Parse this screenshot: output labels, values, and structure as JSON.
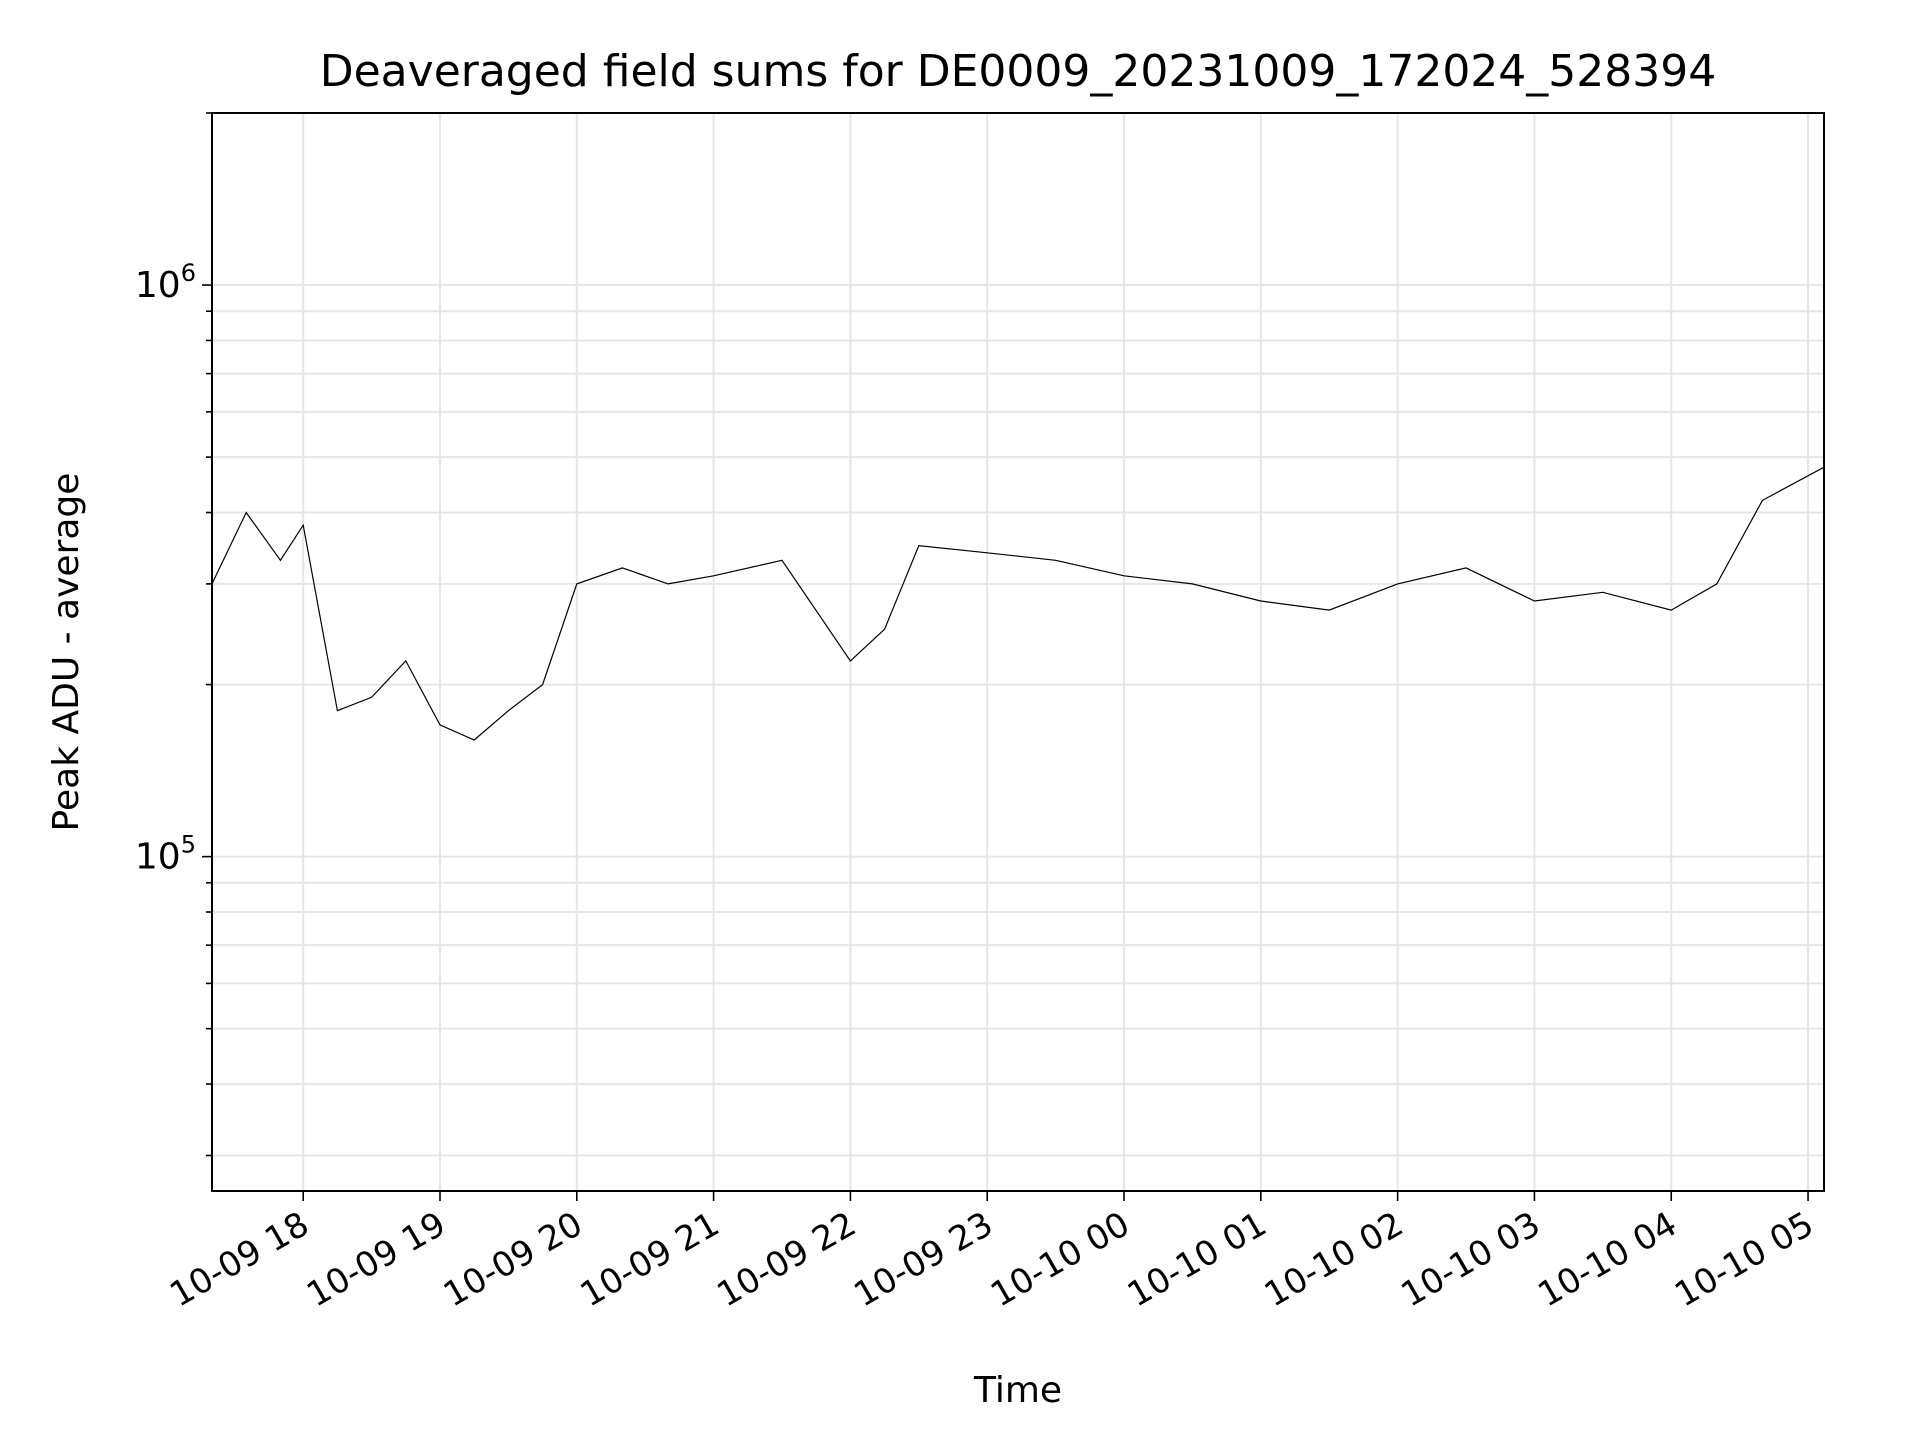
{
  "chart_data": {
    "type": "line",
    "title": "Deaveraged field sums for DE0009_20231009_172024_528394",
    "xlabel": "Time",
    "ylabel": "Peak ADU - average",
    "yscale": "log",
    "ylim": [
      26000,
      2000000
    ],
    "xlim": [
      "2023-10-09 17:20",
      "2023-10-10 05:07"
    ],
    "grid": true,
    "line_color": "#000000",
    "x_ticks": [
      "10-09 18",
      "10-09 19",
      "10-09 20",
      "10-09 21",
      "10-09 22",
      "10-09 23",
      "10-10 00",
      "10-10 01",
      "10-10 02",
      "10-10 03",
      "10-10 04",
      "10-10 05"
    ],
    "y_major_ticks": [
      {
        "base": "10",
        "exp": "5",
        "value": 100000
      },
      {
        "base": "10",
        "exp": "6",
        "value": 1000000
      }
    ],
    "series": [
      {
        "x": [
          "2023-10-09 17:20",
          "2023-10-09 17:35",
          "2023-10-09 17:50",
          "2023-10-09 18:00",
          "2023-10-09 18:15",
          "2023-10-09 18:30",
          "2023-10-09 18:45",
          "2023-10-09 19:00",
          "2023-10-09 19:15",
          "2023-10-09 19:30",
          "2023-10-09 19:45",
          "2023-10-09 20:00",
          "2023-10-09 20:20",
          "2023-10-09 20:40",
          "2023-10-09 21:00",
          "2023-10-09 21:30",
          "2023-10-09 22:00",
          "2023-10-09 22:15",
          "2023-10-09 22:30",
          "2023-10-09 23:00",
          "2023-10-09 23:30",
          "2023-10-10 00:00",
          "2023-10-10 00:30",
          "2023-10-10 01:00",
          "2023-10-10 01:30",
          "2023-10-10 02:00",
          "2023-10-10 02:30",
          "2023-10-10 03:00",
          "2023-10-10 03:30",
          "2023-10-10 04:00",
          "2023-10-10 04:20",
          "2023-10-10 04:40",
          "2023-10-10 05:07"
        ],
        "y": [
          300000,
          400000,
          330000,
          380000,
          180000,
          190000,
          220000,
          170000,
          160000,
          180000,
          200000,
          300000,
          320000,
          300000,
          310000,
          330000,
          220000,
          250000,
          350000,
          340000,
          330000,
          310000,
          300000,
          280000,
          270000,
          300000,
          320000,
          280000,
          290000,
          270000,
          300000,
          420000,
          480000
        ]
      }
    ]
  }
}
